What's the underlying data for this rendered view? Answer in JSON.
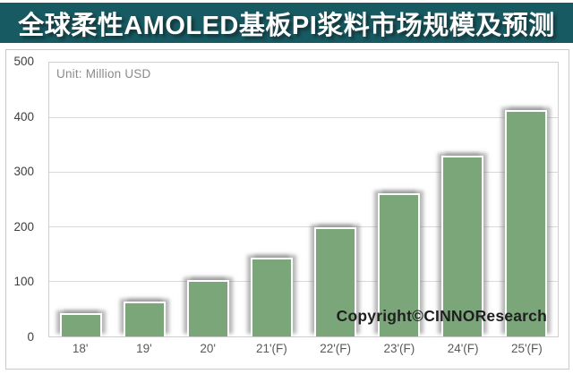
{
  "title": "全球柔性AMOLED基板PI浆料市场规模及预测",
  "unit_label": "Unit: Million USD",
  "copyright": "Copyright©CINNOResearch",
  "colors": {
    "title_background": "#175A62",
    "title_text": "#ffffff",
    "bar_fill": "#7AA679",
    "bar_border": "#ffffff",
    "gridline": "#d9d9d9",
    "axis_text": "#404040",
    "x_axis_text": "#595959",
    "unit_text": "#8a8a8a",
    "copyright_text": "#1f1f1f"
  },
  "chart_data": {
    "type": "bar",
    "title": "全球柔性AMOLED基板PI浆料市场规模及预测",
    "categories": [
      "18'",
      "19'",
      "20'",
      "21'(F)",
      "22'(F)",
      "23'(F)",
      "24'(F)",
      "25'(F)"
    ],
    "values": [
      42,
      63,
      103,
      143,
      200,
      261,
      330,
      413
    ],
    "xlabel": "",
    "ylabel": "Unit: Million USD",
    "ylim": [
      0,
      500
    ],
    "yticks": [
      0,
      100,
      200,
      300,
      400,
      500
    ],
    "grid": true,
    "legend": "none",
    "bar_color": "#7AA679"
  }
}
